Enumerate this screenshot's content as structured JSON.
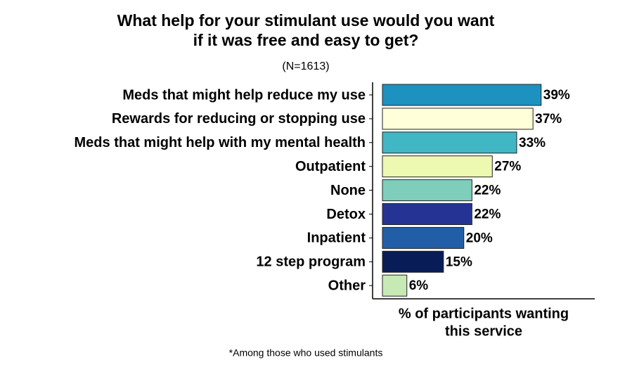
{
  "chart_data": {
    "type": "hbar",
    "title": [
      "What help for your stimulant use would you want",
      "if it was free and easy to get?"
    ],
    "subtitle": "(N=1613)",
    "x_label": [
      "% of participants wanting",
      "this service"
    ],
    "note": "*Among those who used stimulants",
    "categories": [
      "Meds that might help reduce my use",
      "Rewards for reducing or stopping use",
      "Meds that might help with my mental health",
      "Outpatient",
      "None",
      "Detox",
      "Inpatient",
      "12 step program",
      "Other"
    ],
    "values": [
      39,
      37,
      33,
      27,
      22,
      22,
      20,
      15,
      6
    ],
    "value_labels": [
      "39%",
      "37%",
      "33%",
      "27%",
      "22%",
      "22%",
      "20%",
      "15%",
      "6%"
    ],
    "colors": [
      "#1d91c0",
      "#ffffd9",
      "#41b6c4",
      "#edf8b1",
      "#7fcdbb",
      "#253494",
      "#225ea8",
      "#081d58",
      "#c7e9b4"
    ],
    "xlim": [
      0,
      52
    ]
  }
}
